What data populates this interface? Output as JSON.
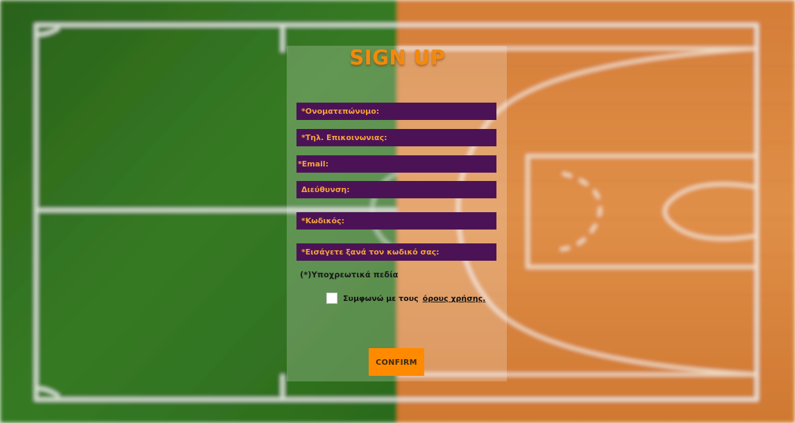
{
  "form": {
    "title": "SIGN UP",
    "fields": [
      {
        "name": "fullname-field",
        "label": "*Ονοματεπώνυμο:"
      },
      {
        "name": "phone-field",
        "label": "*Τηλ. Επικοινωνιας:"
      },
      {
        "name": "email-field",
        "label": "*Email:"
      },
      {
        "name": "address-field",
        "label": "Διεύθυνση:"
      },
      {
        "name": "password-field",
        "label": "*Κωδικός:"
      },
      {
        "name": "confirm-password-field",
        "label": "*Εισάγετε ξανά τον κωδικό σας:"
      }
    ],
    "required_note": "(*)Υποχρεωτικά πεδία",
    "terms_text": "Συμφωνώ με τους",
    "terms_link": "όρους χρήσης.",
    "confirm_label": "CONFIRM"
  },
  "colors": {
    "field_bg": "#4b1356",
    "field_label": "#f6a33a",
    "accent": "#ff8a00",
    "court_green": "#2f6b1e",
    "court_wood": "#d9843f"
  }
}
